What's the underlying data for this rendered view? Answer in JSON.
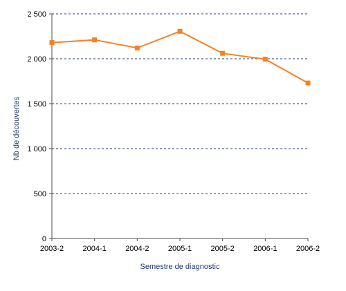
{
  "chart_data": {
    "type": "line",
    "title": "",
    "xlabel": "Semestre de diagnostic",
    "ylabel": "Nb de découvertes",
    "categories": [
      "2003-2",
      "2004-1",
      "2004-2",
      "2005-1",
      "2005-2",
      "2006-1",
      "2006-2"
    ],
    "series": [
      {
        "values": [
          2180,
          2210,
          2120,
          2305,
          2060,
          1995,
          1730
        ]
      }
    ],
    "ylim": [
      0,
      2500
    ],
    "y_ticks": [
      0,
      500,
      1000,
      1500,
      2000,
      2500
    ],
    "y_tick_labels": [
      "0",
      "500",
      "1 000",
      "1 500",
      "2 000",
      "2 500"
    ],
    "grid": "horizontal dashed",
    "legend": "none",
    "colors": {
      "series": "#f58220",
      "grid": "#1f3b6f",
      "axis": "#4d4d4d",
      "axis_title": "#1f3b6f"
    }
  }
}
